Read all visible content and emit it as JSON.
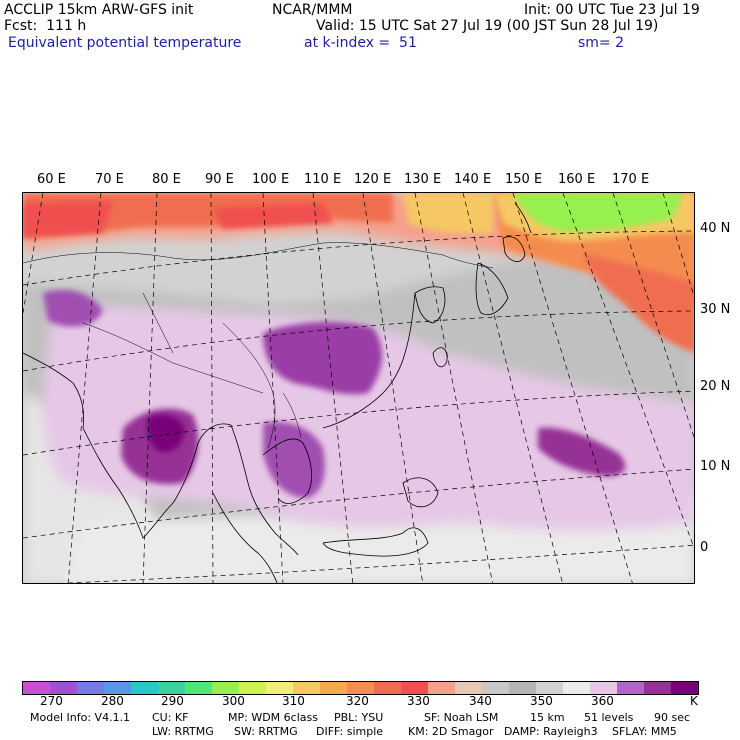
{
  "header": {
    "model": "ACCLIP 15km ARW-GFS init",
    "org": "NCAR/MMM",
    "init": "Init: 00 UTC Tue 23 Jul 19",
    "fcst": "Fcst:  111 h",
    "valid": "Valid: 15 UTC Sat 27 Jul 19 (00 JST Sun 28 Jul 19)",
    "field": "Equivalent potential temperature",
    "level": "at k-index =  51",
    "smooth": "sm= 2"
  },
  "map": {
    "longitude_labels": [
      "60 E",
      "70 E",
      "80 E",
      "90 E",
      "100 E",
      "110 E",
      "120 E",
      "130 E",
      "140 E",
      "150 E",
      "160 E",
      "170 E"
    ],
    "latitude_labels": [
      "40 N",
      "30 N",
      "20 N",
      "10 N",
      "0"
    ]
  },
  "colorbar": {
    "colors": [
      "#c850d2",
      "#a050d2",
      "#7878e6",
      "#5a96e6",
      "#28c8c8",
      "#3cd2a0",
      "#50e678",
      "#96f050",
      "#d2f050",
      "#f0f078",
      "#f5c864",
      "#f5aa50",
      "#f58c50",
      "#f06e50",
      "#f05050",
      "#f5a08c",
      "#e6c8b4",
      "#c8c8c8",
      "#b4b4b4",
      "#d2d2d2",
      "#ebebeb",
      "#e6c8e6",
      "#b464c8",
      "#963296",
      "#780078"
    ],
    "labels": [
      "270",
      "280",
      "290",
      "300",
      "310",
      "320",
      "330",
      "340",
      "350",
      "360"
    ],
    "unit": "K"
  },
  "info": {
    "line1": [
      "Model Info: V4.1.1",
      "CU: KF",
      "MP: WDM 6class",
      "PBL: YSU",
      "SF: Noah LSM",
      "15 km",
      "51 levels",
      "90 sec"
    ],
    "line2": [
      "LW: RRTMG",
      "SW: RRTMG",
      "DIFF: simple",
      "KM: 2D Smagor",
      "DAMP: Rayleigh3",
      "SFLAY: MM5"
    ]
  }
}
